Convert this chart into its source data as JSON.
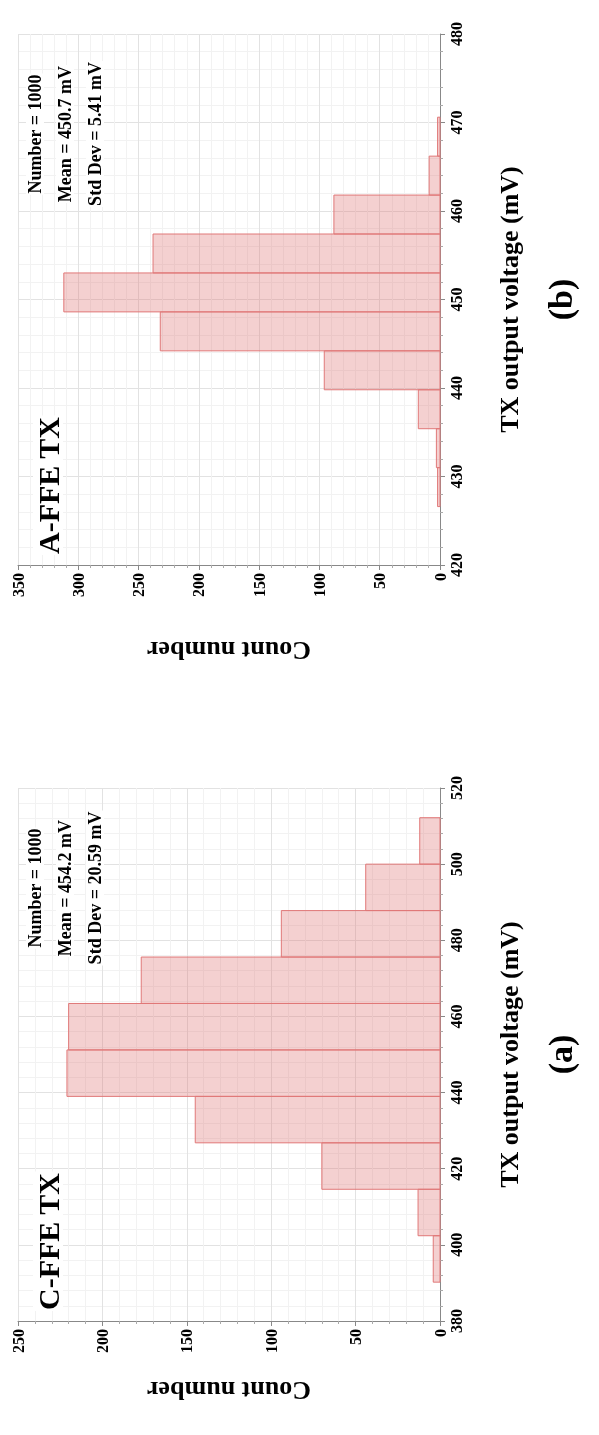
{
  "chart_data": [
    {
      "type": "histogram",
      "orientation": "horizontal",
      "title": "C-FFE TX",
      "xlabel": "Count number",
      "ylabel": "TX output voltage (mV)",
      "annotations": [
        "Number = 1000",
        "Mean = 454.2 mV",
        "Std Dev = 20.59 mV",
        "(a)"
      ],
      "bins": [
        390.2,
        402.4,
        414.6,
        426.8,
        439.0,
        451.2,
        463.4,
        475.6,
        487.8,
        500.0,
        512.2
      ],
      "values": [
        4,
        13,
        70,
        145,
        221,
        220,
        177,
        94,
        44,
        12
      ],
      "color": "#e07878",
      "xlim": [
        250,
        0
      ],
      "xticks": [
        250,
        200,
        150,
        100,
        50,
        0
      ],
      "ylim": [
        380,
        520
      ],
      "yticks": [
        380,
        400,
        420,
        440,
        460,
        480,
        500,
        520
      ],
      "grid": true
    },
    {
      "type": "histogram",
      "orientation": "horizontal",
      "title": "A-FFE TX",
      "xlabel": "Count number",
      "ylabel": "TX output voltage (mV)",
      "annotations": [
        "Number = 1000",
        "Mean = 450.7 mV",
        "Std Dev = 5.41 mV",
        "(b)"
      ],
      "bins": [
        426.6,
        431.0,
        435.4,
        439.8,
        444.2,
        448.6,
        453.0,
        457.4,
        461.8,
        466.2,
        470.6
      ],
      "values": [
        2,
        3,
        18,
        96,
        232,
        312,
        238,
        88,
        9,
        2
      ],
      "color": "#e07878",
      "xlim": [
        350,
        0
      ],
      "xticks": [
        350,
        300,
        250,
        200,
        150,
        100,
        50,
        0
      ],
      "ylim": [
        420,
        480
      ],
      "yticks": [
        420,
        430,
        440,
        450,
        460,
        470,
        480
      ],
      "grid": true
    }
  ]
}
